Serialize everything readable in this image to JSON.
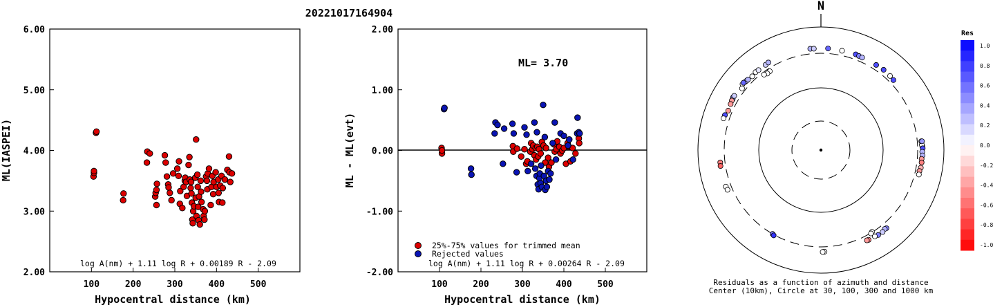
{
  "page_title": "20221017164904",
  "colors": {
    "inrange": "#dd0000",
    "rejected": "#0a14b4",
    "frame": "#000000"
  },
  "chart_data": [
    {
      "type": "scatter",
      "title": "",
      "xlabel": "Hypocentral distance (km)",
      "ylabel": "ML(IASPEI)",
      "xlim": [
        0,
        600
      ],
      "ylim": [
        2.0,
        6.0
      ],
      "xticks": [
        "100",
        "200",
        "300",
        "400",
        "500"
      ],
      "yticks": [
        "2.00",
        "3.00",
        "4.00",
        "5.00",
        "6.00"
      ],
      "formula": "log A(nm) + 1.11 log R + 0.00189 R - 2.09",
      "series": [
        {
          "points": [
            [
              105,
              3.57
            ],
            [
              106,
              3.63
            ],
            [
              106,
              3.66
            ],
            [
              111,
              4.29
            ],
            [
              112,
              4.31
            ],
            [
              176,
              3.18
            ],
            [
              177,
              3.29
            ],
            [
              233,
              3.8
            ],
            [
              234,
              3.98
            ],
            [
              240,
              3.95
            ],
            [
              253,
              3.24
            ],
            [
              254,
              3.3
            ],
            [
              256,
              3.1
            ],
            [
              256,
              3.35
            ],
            [
              257,
              3.45
            ],
            [
              276,
              3.92
            ],
            [
              278,
              3.8
            ],
            [
              281,
              3.57
            ],
            [
              284,
              3.44
            ],
            [
              285,
              3.39
            ],
            [
              288,
              3.3
            ],
            [
              292,
              3.18
            ],
            [
              296,
              3.62
            ],
            [
              306,
              3.7
            ],
            [
              309,
              3.58
            ],
            [
              310,
              3.82
            ],
            [
              312,
              3.12
            ],
            [
              313,
              3.33
            ],
            [
              318,
              3.05
            ],
            [
              321,
              3.4
            ],
            [
              324,
              3.5
            ],
            [
              325,
              3.55
            ],
            [
              327,
              3.48
            ],
            [
              329,
              3.25
            ],
            [
              333,
              3.76
            ],
            [
              335,
              3.89
            ],
            [
              336,
              3.52
            ],
            [
              338,
              3.38
            ],
            [
              339,
              3.48
            ],
            [
              340,
              3.29
            ],
            [
              341,
              3.14
            ],
            [
              342,
              2.86
            ],
            [
              343,
              2.8
            ],
            [
              344,
              3.0
            ],
            [
              346,
              3.08
            ],
            [
              349,
              3.55
            ],
            [
              350,
              3.22
            ],
            [
              351,
              4.18
            ],
            [
              352,
              2.92
            ],
            [
              354,
              3.6
            ],
            [
              355,
              3.4
            ],
            [
              356,
              3.07
            ],
            [
              357,
              2.85
            ],
            [
              358,
              3.24
            ],
            [
              360,
              2.78
            ],
            [
              362,
              3.5
            ],
            [
              363,
              3.32
            ],
            [
              364,
              3.15
            ],
            [
              368,
              3.03
            ],
            [
              369,
              2.92
            ],
            [
              371,
              2.86
            ],
            [
              372,
              3.0
            ],
            [
              375,
              3.57
            ],
            [
              377,
              3.5
            ],
            [
              378,
              3.36
            ],
            [
              379,
              3.62
            ],
            [
              382,
              3.7
            ],
            [
              386,
              3.1
            ],
            [
              388,
              3.4
            ],
            [
              390,
              3.58
            ],
            [
              392,
              3.28
            ],
            [
              393,
              3.48
            ],
            [
              398,
              3.64
            ],
            [
              400,
              3.4
            ],
            [
              404,
              3.52
            ],
            [
              405,
              3.3
            ],
            [
              406,
              3.15
            ],
            [
              409,
              3.42
            ],
            [
              412,
              3.58
            ],
            [
              414,
              3.14
            ],
            [
              415,
              3.38
            ],
            [
              420,
              3.52
            ],
            [
              426,
              3.68
            ],
            [
              430,
              3.9
            ],
            [
              431,
              3.64
            ],
            [
              433,
              3.48
            ],
            [
              437,
              3.62
            ]
          ]
        }
      ]
    },
    {
      "type": "scatter",
      "title": "",
      "xlabel": "Hypocentral distance (km)",
      "ylabel": "ML - ML(evt)",
      "xlim": [
        0,
        600
      ],
      "ylim": [
        -2.0,
        2.0
      ],
      "xticks": [
        "100",
        "200",
        "300",
        "400",
        "500"
      ],
      "yticks": [
        "-2.00",
        "-1.00",
        "0.00",
        "1.00",
        "2.00"
      ],
      "reference_line": 0,
      "annotation": "ML= 3.70",
      "formula": "log A(nm) + 1.11 log R + 0.00264 R - 2.09",
      "legend": [
        "25%-75% values for trimmed mean",
        "Rejected values"
      ],
      "legend_position": "bottom-left",
      "series": [
        {
          "name": "25%-75% values for trimmed mean",
          "points": [
            [
              105,
              0.04
            ],
            [
              106,
              -0.05
            ],
            [
              106,
              0.0
            ],
            [
              277,
              0.07
            ],
            [
              278,
              -0.02
            ],
            [
              287,
              0.03
            ],
            [
              297,
              -0.1
            ],
            [
              305,
              0.02
            ],
            [
              309,
              -0.22
            ],
            [
              312,
              -0.18
            ],
            [
              319,
              -0.02
            ],
            [
              321,
              0.12
            ],
            [
              324,
              0.02
            ],
            [
              326,
              0.08
            ],
            [
              329,
              -0.08
            ],
            [
              332,
              0.04
            ],
            [
              333,
              -0.15
            ],
            [
              336,
              0.06
            ],
            [
              338,
              -0.1
            ],
            [
              340,
              0.02
            ],
            [
              344,
              -0.05
            ],
            [
              347,
              0.14
            ],
            [
              351,
              0.08
            ],
            [
              355,
              -0.2
            ],
            [
              357,
              0.04
            ],
            [
              362,
              -0.12
            ],
            [
              364,
              -0.27
            ],
            [
              370,
              -0.2
            ],
            [
              376,
              0.1
            ],
            [
              378,
              -0.02
            ],
            [
              382,
              0.02
            ],
            [
              384,
              0.15
            ],
            [
              389,
              0.06
            ],
            [
              392,
              -0.05
            ],
            [
              396,
              0.0
            ],
            [
              400,
              0.04
            ],
            [
              405,
              -0.22
            ],
            [
              409,
              0.12
            ],
            [
              412,
              0.06
            ],
            [
              416,
              -0.18
            ],
            [
              421,
              0.04
            ],
            [
              428,
              -0.05
            ],
            [
              436,
              0.2
            ],
            [
              437,
              0.12
            ]
          ]
        },
        {
          "name": "Rejected values",
          "points": [
            [
              111,
              0.68
            ],
            [
              112,
              0.7
            ],
            [
              176,
              -0.3
            ],
            [
              177,
              -0.4
            ],
            [
              233,
              0.28
            ],
            [
              235,
              0.46
            ],
            [
              240,
              0.42
            ],
            [
              253,
              -0.22
            ],
            [
              256,
              0.36
            ],
            [
              276,
              0.44
            ],
            [
              279,
              0.28
            ],
            [
              286,
              -0.36
            ],
            [
              305,
              0.38
            ],
            [
              310,
              0.26
            ],
            [
              313,
              -0.34
            ],
            [
              321,
              -0.22
            ],
            [
              329,
              0.46
            ],
            [
              331,
              -0.3
            ],
            [
              334,
              -0.42
            ],
            [
              335,
              0.3
            ],
            [
              337,
              -0.56
            ],
            [
              339,
              -0.64
            ],
            [
              341,
              -0.46
            ],
            [
              342,
              -0.38
            ],
            [
              344,
              -0.54
            ],
            [
              345,
              -0.25
            ],
            [
              347,
              -0.6
            ],
            [
              350,
              0.75
            ],
            [
              352,
              -0.42
            ],
            [
              354,
              0.22
            ],
            [
              355,
              -0.65
            ],
            [
              357,
              -0.5
            ],
            [
              359,
              -0.6
            ],
            [
              362,
              -0.34
            ],
            [
              365,
              -0.48
            ],
            [
              368,
              -0.38
            ],
            [
              373,
              0.12
            ],
            [
              378,
              0.46
            ],
            [
              381,
              -0.15
            ],
            [
              392,
              0.28
            ],
            [
              400,
              0.24
            ],
            [
              410,
              0.08
            ],
            [
              413,
              0.18
            ],
            [
              422,
              -0.15
            ],
            [
              432,
              0.28
            ],
            [
              433,
              0.54
            ],
            [
              436,
              0.3
            ],
            [
              438,
              0.28
            ]
          ]
        }
      ]
    }
  ],
  "polar": {
    "north_label": "N",
    "caption_line1": "Residuals as a function of azimuth and distance",
    "caption_line2": "Center (10km), Circle at 30, 100, 300 and 1000 km",
    "colorbar_title": "Res",
    "colorbar_ticks": [
      "1.0",
      "0.8",
      "0.6",
      "0.4",
      "0.2",
      "0.0",
      "-0.2",
      "-0.4",
      "-0.6",
      "-0.8",
      "-1.0"
    ],
    "stations": [
      [
        -48,
        380,
        0.5
      ],
      [
        -47,
        376,
        0.3
      ],
      [
        -50,
        388,
        0.0
      ],
      [
        -46,
        372,
        0.3
      ],
      [
        -49,
        392,
        0.6
      ],
      [
        -40,
        376,
        0.0
      ],
      [
        -38,
        372,
        0.1
      ],
      [
        -33,
        374,
        0.2
      ],
      [
        -31,
        383,
        0.3
      ],
      [
        -43,
        360,
        0.0
      ],
      [
        -6,
        378,
        0.3
      ],
      [
        -4,
        374,
        0.2
      ],
      [
        4,
        378,
        0.6
      ],
      [
        12,
        372,
        0.0
      ],
      [
        20,
        378,
        0.7
      ],
      [
        22,
        372,
        0.5
      ],
      [
        24,
        368,
        0.3
      ],
      [
        33,
        372,
        0.7
      ],
      [
        38,
        378,
        0.7
      ],
      [
        43,
        370,
        0.0
      ],
      [
        46,
        360,
        0.7
      ],
      [
        -59,
        390,
        0.5
      ],
      [
        -60,
        380,
        0.4
      ],
      [
        -61,
        380,
        -0.4
      ],
      [
        -63,
        370,
        -0.4
      ],
      [
        -58,
        386,
        0.2
      ],
      [
        -70,
        385,
        0.7
      ],
      [
        -72,
        390,
        0.0
      ],
      [
        -67,
        360,
        -0.4
      ],
      [
        -52,
        350,
        0.0
      ],
      [
        -33,
        274,
        0.0
      ],
      [
        -35,
        270,
        0.0
      ],
      [
        -37,
        279,
        0.0
      ],
      [
        88,
        372,
        0.0
      ],
      [
        87,
        366,
        0.0
      ],
      [
        85,
        360,
        0.1
      ],
      [
        85,
        372,
        0.4
      ],
      [
        89,
        378,
        0.7
      ],
      [
        91,
        370,
        0.3
      ],
      [
        93,
        376,
        0.3
      ],
      [
        95,
        366,
        -0.4
      ],
      [
        97,
        372,
        -0.5
      ],
      [
        100,
        372,
        -0.3
      ],
      [
        102,
        360,
        -0.4
      ],
      [
        104,
        364,
        0.0
      ],
      [
        -97,
        372,
        -0.5
      ],
      [
        -99,
        376,
        -0.6
      ],
      [
        -111,
        380,
        0.0
      ],
      [
        -113,
        373,
        0.0
      ],
      [
        -150,
        300,
        0.5
      ],
      [
        -151,
        310,
        0.8
      ],
      [
        148,
        296,
        0.0
      ],
      [
        149,
        306,
        0.0
      ],
      [
        140,
        380,
        0.5
      ],
      [
        141,
        372,
        0.3
      ],
      [
        143,
        390,
        0.2
      ],
      [
        146,
        388,
        0.5
      ],
      [
        148,
        376,
        0.0
      ],
      [
        152,
        374,
        -0.5
      ],
      [
        153,
        368,
        -0.4
      ],
      [
        178,
        374,
        0.0
      ],
      [
        179,
        378,
        0.0
      ]
    ]
  }
}
